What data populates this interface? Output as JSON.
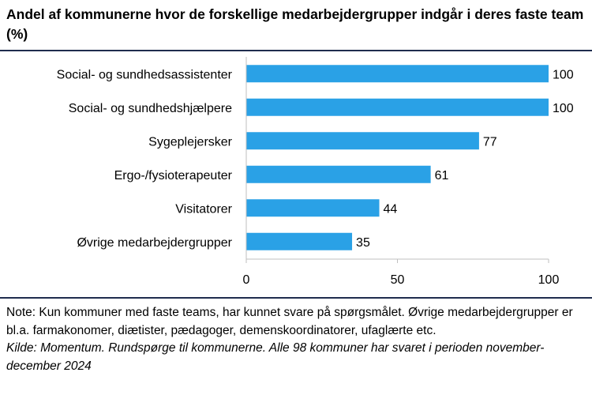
{
  "title": "Andel af kommunerne hvor de forskellige medarbejdergrupper indgår i deres faste team (%)",
  "colors": {
    "bar": "#2aa1e6",
    "axis": "#bfbfbf",
    "rule": "#1f2d4e"
  },
  "chart_data": {
    "type": "bar",
    "orientation": "horizontal",
    "title": "Andel af kommunerne hvor de forskellige medarbejdergrupper indgår i deres faste team (%)",
    "categories": [
      "Social- og sundhedsassistenter",
      "Social- og sundhedshjælpere",
      "Sygeplejersker",
      "Ergo-/fysioterapeuter",
      "Visitatorer",
      "Øvrige medarbejdergrupper"
    ],
    "values": [
      100,
      100,
      77,
      61,
      44,
      35
    ],
    "xlim": [
      0,
      100
    ],
    "xticks": [
      0,
      50,
      100
    ],
    "xlabel": "",
    "ylabel": "",
    "grid": false,
    "data_labels": true
  },
  "note": "Note: Kun kommuner med faste teams, har kunnet svare på spørgsmålet. Øvrige medarbejdergrupper er bl.a. farmakonomer, diætister, pædagoger, demenskoordinatorer, ufaglærte etc.",
  "source": "Kilde: Momentum. Rundspørge til kommunerne. Alle 98 kommuner har svaret i perioden november-december 2024"
}
